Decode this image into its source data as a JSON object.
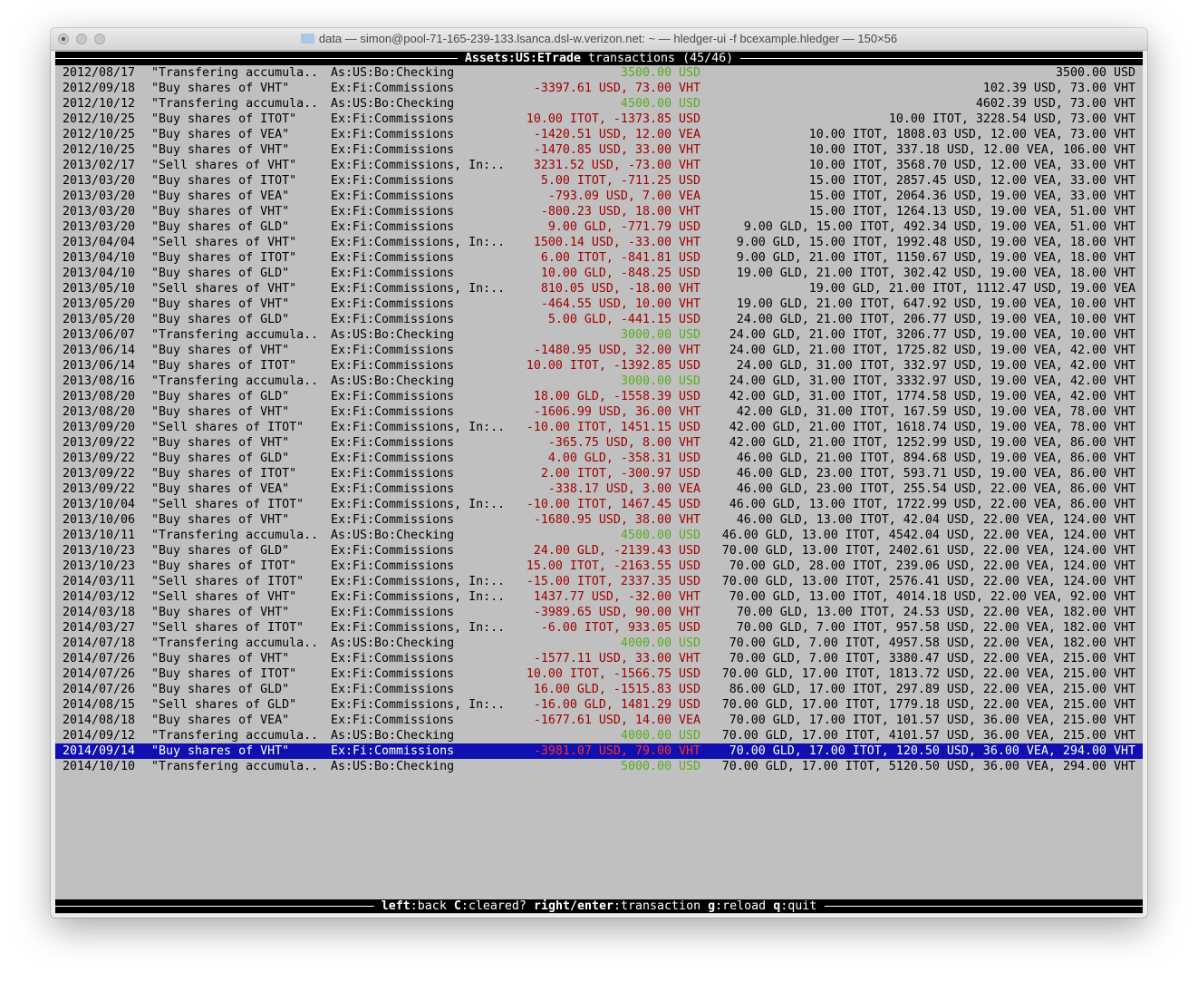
{
  "window": {
    "title": "data — simon@pool-71-165-239-133.lsanca.dsl-w.verizon.net: ~ — hledger-ui -f bcexample.hledger — 150×56"
  },
  "header": {
    "account": "Assets:US:ETrade",
    "label": "transactions",
    "count": "(45/46)"
  },
  "colors": {
    "deposit_amount": "#5aac1e",
    "debit_amount": "#a00000",
    "selected_bg": "#1010b0",
    "selected_amount": "#ff3030",
    "background": "#c0c0c0"
  },
  "selected_index": 44,
  "rows": [
    [
      "2012/08/17",
      "\"Transfering accumula..",
      "As:US:Bo:Checking",
      "3500.00 USD",
      "3500.00 USD"
    ],
    [
      "2012/09/18",
      "\"Buy shares of VHT\"",
      "Ex:Fi:Commissions",
      "-3397.61 USD, 73.00 VHT",
      "102.39 USD, 73.00 VHT"
    ],
    [
      "2012/10/12",
      "\"Transfering accumula..",
      "As:US:Bo:Checking",
      "4500.00 USD",
      "4602.39 USD, 73.00 VHT"
    ],
    [
      "2012/10/25",
      "\"Buy shares of ITOT\"",
      "Ex:Fi:Commissions",
      "10.00 ITOT, -1373.85 USD",
      "10.00 ITOT, 3228.54 USD, 73.00 VHT"
    ],
    [
      "2012/10/25",
      "\"Buy shares of VEA\"",
      "Ex:Fi:Commissions",
      "-1420.51 USD, 12.00 VEA",
      "10.00 ITOT, 1808.03 USD, 12.00 VEA, 73.00 VHT"
    ],
    [
      "2012/10/25",
      "\"Buy shares of VHT\"",
      "Ex:Fi:Commissions",
      "-1470.85 USD, 33.00 VHT",
      "10.00 ITOT, 337.18 USD, 12.00 VEA, 106.00 VHT"
    ],
    [
      "2013/02/17",
      "\"Sell shares of VHT\"",
      "Ex:Fi:Commissions, In:..",
      "3231.52 USD, -73.00 VHT",
      "10.00 ITOT, 3568.70 USD, 12.00 VEA, 33.00 VHT"
    ],
    [
      "2013/03/20",
      "\"Buy shares of ITOT\"",
      "Ex:Fi:Commissions",
      "5.00 ITOT, -711.25 USD",
      "15.00 ITOT, 2857.45 USD, 12.00 VEA, 33.00 VHT"
    ],
    [
      "2013/03/20",
      "\"Buy shares of VEA\"",
      "Ex:Fi:Commissions",
      "-793.09 USD, 7.00 VEA",
      "15.00 ITOT, 2064.36 USD, 19.00 VEA, 33.00 VHT"
    ],
    [
      "2013/03/20",
      "\"Buy shares of VHT\"",
      "Ex:Fi:Commissions",
      "-800.23 USD, 18.00 VHT",
      "15.00 ITOT, 1264.13 USD, 19.00 VEA, 51.00 VHT"
    ],
    [
      "2013/03/20",
      "\"Buy shares of GLD\"",
      "Ex:Fi:Commissions",
      "9.00 GLD, -771.79 USD",
      "9.00 GLD, 15.00 ITOT, 492.34 USD, 19.00 VEA, 51.00 VHT"
    ],
    [
      "2013/04/04",
      "\"Sell shares of VHT\"",
      "Ex:Fi:Commissions, In:..",
      "1500.14 USD, -33.00 VHT",
      "9.00 GLD, 15.00 ITOT, 1992.48 USD, 19.00 VEA, 18.00 VHT"
    ],
    [
      "2013/04/10",
      "\"Buy shares of ITOT\"",
      "Ex:Fi:Commissions",
      "6.00 ITOT, -841.81 USD",
      "9.00 GLD, 21.00 ITOT, 1150.67 USD, 19.00 VEA, 18.00 VHT"
    ],
    [
      "2013/04/10",
      "\"Buy shares of GLD\"",
      "Ex:Fi:Commissions",
      "10.00 GLD, -848.25 USD",
      "19.00 GLD, 21.00 ITOT, 302.42 USD, 19.00 VEA, 18.00 VHT"
    ],
    [
      "2013/05/10",
      "\"Sell shares of VHT\"",
      "Ex:Fi:Commissions, In:..",
      "810.05 USD, -18.00 VHT",
      "19.00 GLD, 21.00 ITOT, 1112.47 USD, 19.00 VEA"
    ],
    [
      "2013/05/20",
      "\"Buy shares of VHT\"",
      "Ex:Fi:Commissions",
      "-464.55 USD, 10.00 VHT",
      "19.00 GLD, 21.00 ITOT, 647.92 USD, 19.00 VEA, 10.00 VHT"
    ],
    [
      "2013/05/20",
      "\"Buy shares of GLD\"",
      "Ex:Fi:Commissions",
      "5.00 GLD, -441.15 USD",
      "24.00 GLD, 21.00 ITOT, 206.77 USD, 19.00 VEA, 10.00 VHT"
    ],
    [
      "2013/06/07",
      "\"Transfering accumula..",
      "As:US:Bo:Checking",
      "3000.00 USD",
      "24.00 GLD, 21.00 ITOT, 3206.77 USD, 19.00 VEA, 10.00 VHT"
    ],
    [
      "2013/06/14",
      "\"Buy shares of VHT\"",
      "Ex:Fi:Commissions",
      "-1480.95 USD, 32.00 VHT",
      "24.00 GLD, 21.00 ITOT, 1725.82 USD, 19.00 VEA, 42.00 VHT"
    ],
    [
      "2013/06/14",
      "\"Buy shares of ITOT\"",
      "Ex:Fi:Commissions",
      "10.00 ITOT, -1392.85 USD",
      "24.00 GLD, 31.00 ITOT, 332.97 USD, 19.00 VEA, 42.00 VHT"
    ],
    [
      "2013/08/16",
      "\"Transfering accumula..",
      "As:US:Bo:Checking",
      "3000.00 USD",
      "24.00 GLD, 31.00 ITOT, 3332.97 USD, 19.00 VEA, 42.00 VHT"
    ],
    [
      "2013/08/20",
      "\"Buy shares of GLD\"",
      "Ex:Fi:Commissions",
      "18.00 GLD, -1558.39 USD",
      "42.00 GLD, 31.00 ITOT, 1774.58 USD, 19.00 VEA, 42.00 VHT"
    ],
    [
      "2013/08/20",
      "\"Buy shares of VHT\"",
      "Ex:Fi:Commissions",
      "-1606.99 USD, 36.00 VHT",
      "42.00 GLD, 31.00 ITOT, 167.59 USD, 19.00 VEA, 78.00 VHT"
    ],
    [
      "2013/09/20",
      "\"Sell shares of ITOT\"",
      "Ex:Fi:Commissions, In:..",
      "-10.00 ITOT, 1451.15 USD",
      "42.00 GLD, 21.00 ITOT, 1618.74 USD, 19.00 VEA, 78.00 VHT"
    ],
    [
      "2013/09/22",
      "\"Buy shares of VHT\"",
      "Ex:Fi:Commissions",
      "-365.75 USD, 8.00 VHT",
      "42.00 GLD, 21.00 ITOT, 1252.99 USD, 19.00 VEA, 86.00 VHT"
    ],
    [
      "2013/09/22",
      "\"Buy shares of GLD\"",
      "Ex:Fi:Commissions",
      "4.00 GLD, -358.31 USD",
      "46.00 GLD, 21.00 ITOT, 894.68 USD, 19.00 VEA, 86.00 VHT"
    ],
    [
      "2013/09/22",
      "\"Buy shares of ITOT\"",
      "Ex:Fi:Commissions",
      "2.00 ITOT, -300.97 USD",
      "46.00 GLD, 23.00 ITOT, 593.71 USD, 19.00 VEA, 86.00 VHT"
    ],
    [
      "2013/09/22",
      "\"Buy shares of VEA\"",
      "Ex:Fi:Commissions",
      "-338.17 USD, 3.00 VEA",
      "46.00 GLD, 23.00 ITOT, 255.54 USD, 22.00 VEA, 86.00 VHT"
    ],
    [
      "2013/10/04",
      "\"Sell shares of ITOT\"",
      "Ex:Fi:Commissions, In:..",
      "-10.00 ITOT, 1467.45 USD",
      "46.00 GLD, 13.00 ITOT, 1722.99 USD, 22.00 VEA, 86.00 VHT"
    ],
    [
      "2013/10/06",
      "\"Buy shares of VHT\"",
      "Ex:Fi:Commissions",
      "-1680.95 USD, 38.00 VHT",
      "46.00 GLD, 13.00 ITOT, 42.04 USD, 22.00 VEA, 124.00 VHT"
    ],
    [
      "2013/10/11",
      "\"Transfering accumula..",
      "As:US:Bo:Checking",
      "4500.00 USD",
      "46.00 GLD, 13.00 ITOT, 4542.04 USD, 22.00 VEA, 124.00 VHT"
    ],
    [
      "2013/10/23",
      "\"Buy shares of GLD\"",
      "Ex:Fi:Commissions",
      "24.00 GLD, -2139.43 USD",
      "70.00 GLD, 13.00 ITOT, 2402.61 USD, 22.00 VEA, 124.00 VHT"
    ],
    [
      "2013/10/23",
      "\"Buy shares of ITOT\"",
      "Ex:Fi:Commissions",
      "15.00 ITOT, -2163.55 USD",
      "70.00 GLD, 28.00 ITOT, 239.06 USD, 22.00 VEA, 124.00 VHT"
    ],
    [
      "2014/03/11",
      "\"Sell shares of ITOT\"",
      "Ex:Fi:Commissions, In:..",
      "-15.00 ITOT, 2337.35 USD",
      "70.00 GLD, 13.00 ITOT, 2576.41 USD, 22.00 VEA, 124.00 VHT"
    ],
    [
      "2014/03/12",
      "\"Sell shares of VHT\"",
      "Ex:Fi:Commissions, In:..",
      "1437.77 USD, -32.00 VHT",
      "70.00 GLD, 13.00 ITOT, 4014.18 USD, 22.00 VEA, 92.00 VHT"
    ],
    [
      "2014/03/18",
      "\"Buy shares of VHT\"",
      "Ex:Fi:Commissions",
      "-3989.65 USD, 90.00 VHT",
      "70.00 GLD, 13.00 ITOT, 24.53 USD, 22.00 VEA, 182.00 VHT"
    ],
    [
      "2014/03/27",
      "\"Sell shares of ITOT\"",
      "Ex:Fi:Commissions, In:..",
      "-6.00 ITOT, 933.05 USD",
      "70.00 GLD, 7.00 ITOT, 957.58 USD, 22.00 VEA, 182.00 VHT"
    ],
    [
      "2014/07/18",
      "\"Transfering accumula..",
      "As:US:Bo:Checking",
      "4000.00 USD",
      "70.00 GLD, 7.00 ITOT, 4957.58 USD, 22.00 VEA, 182.00 VHT"
    ],
    [
      "2014/07/26",
      "\"Buy shares of VHT\"",
      "Ex:Fi:Commissions",
      "-1577.11 USD, 33.00 VHT",
      "70.00 GLD, 7.00 ITOT, 3380.47 USD, 22.00 VEA, 215.00 VHT"
    ],
    [
      "2014/07/26",
      "\"Buy shares of ITOT\"",
      "Ex:Fi:Commissions",
      "10.00 ITOT, -1566.75 USD",
      "70.00 GLD, 17.00 ITOT, 1813.72 USD, 22.00 VEA, 215.00 VHT"
    ],
    [
      "2014/07/26",
      "\"Buy shares of GLD\"",
      "Ex:Fi:Commissions",
      "16.00 GLD, -1515.83 USD",
      "86.00 GLD, 17.00 ITOT, 297.89 USD, 22.00 VEA, 215.00 VHT"
    ],
    [
      "2014/08/15",
      "\"Sell shares of GLD\"",
      "Ex:Fi:Commissions, In:..",
      "-16.00 GLD, 1481.29 USD",
      "70.00 GLD, 17.00 ITOT, 1779.18 USD, 22.00 VEA, 215.00 VHT"
    ],
    [
      "2014/08/18",
      "\"Buy shares of VEA\"",
      "Ex:Fi:Commissions",
      "-1677.61 USD, 14.00 VEA",
      "70.00 GLD, 17.00 ITOT, 101.57 USD, 36.00 VEA, 215.00 VHT"
    ],
    [
      "2014/09/12",
      "\"Transfering accumula..",
      "As:US:Bo:Checking",
      "4000.00 USD",
      "70.00 GLD, 17.00 ITOT, 4101.57 USD, 36.00 VEA, 215.00 VHT"
    ],
    [
      "2014/09/14",
      "\"Buy shares of VHT\"",
      "Ex:Fi:Commissions",
      "-3981.07 USD, 79.00 VHT",
      "70.00 GLD, 17.00 ITOT, 120.50 USD, 36.00 VEA, 294.00 VHT"
    ],
    [
      "2014/10/10",
      "\"Transfering accumula..",
      "As:US:Bo:Checking",
      "5000.00 USD",
      "70.00 GLD, 17.00 ITOT, 5120.50 USD, 36.00 VEA, 294.00 VHT"
    ]
  ],
  "footer": {
    "keys": [
      {
        "key": "left",
        "action": "back"
      },
      {
        "key": "C",
        "action": "cleared?"
      },
      {
        "key": "right/enter",
        "action": "transaction"
      },
      {
        "key": "g",
        "action": "reload"
      },
      {
        "key": "q",
        "action": "quit"
      }
    ]
  }
}
